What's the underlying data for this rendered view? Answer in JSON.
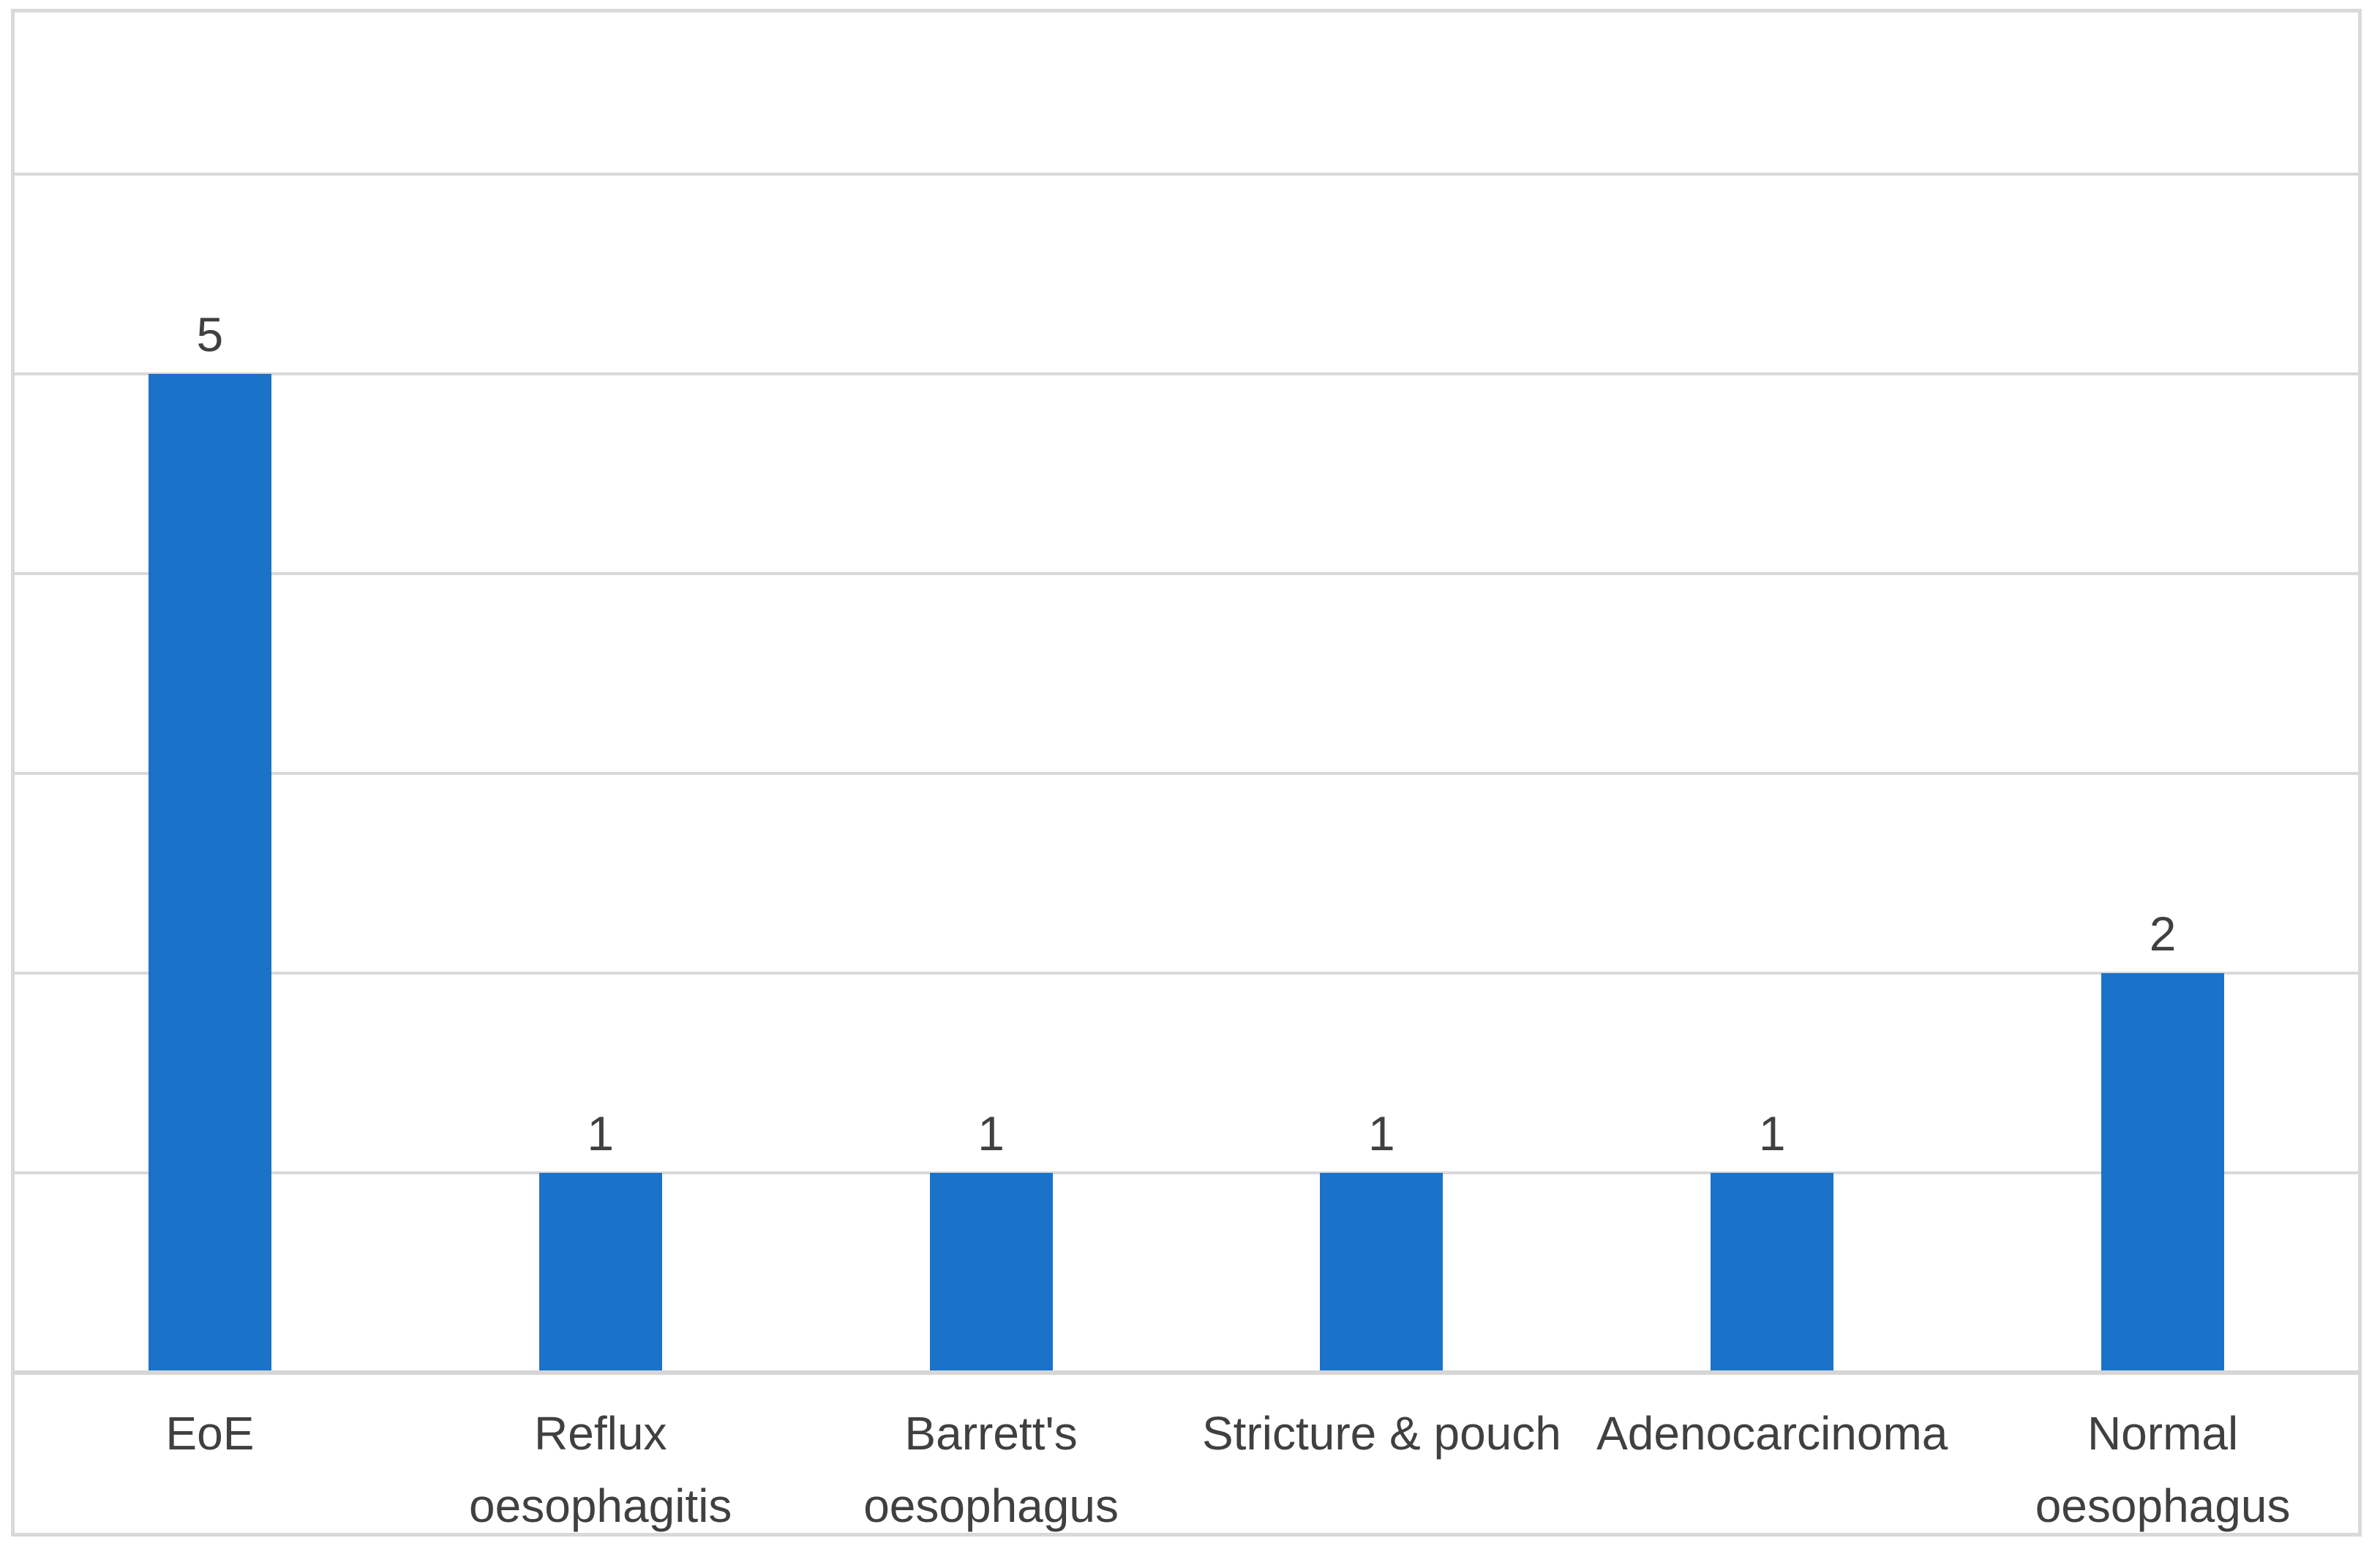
{
  "chart_data": {
    "type": "bar",
    "title": "",
    "xlabel": "",
    "ylabel": "",
    "categories": [
      "EoE",
      "Reflux\noesophagitis",
      "Barrett's\noesophagus",
      "Stricture & pouch",
      "Adenocarcinoma",
      "Normal\noesophagus"
    ],
    "values": [
      5,
      1,
      1,
      1,
      1,
      2
    ],
    "data_labels": [
      "5",
      "1",
      "1",
      "1",
      "1",
      "2"
    ],
    "ylim": [
      0,
      6
    ],
    "y_gridline_step": 1,
    "grid": "horizontal gridlines on, no y-axis tick labels, no legend",
    "legend_position": "none",
    "bar_color": "#1B73C9",
    "gridline_color": "#D9D9D9",
    "axis_line_color": "#D6D6D6",
    "border_color": "#D9D9D9",
    "label_color": "#404040"
  }
}
